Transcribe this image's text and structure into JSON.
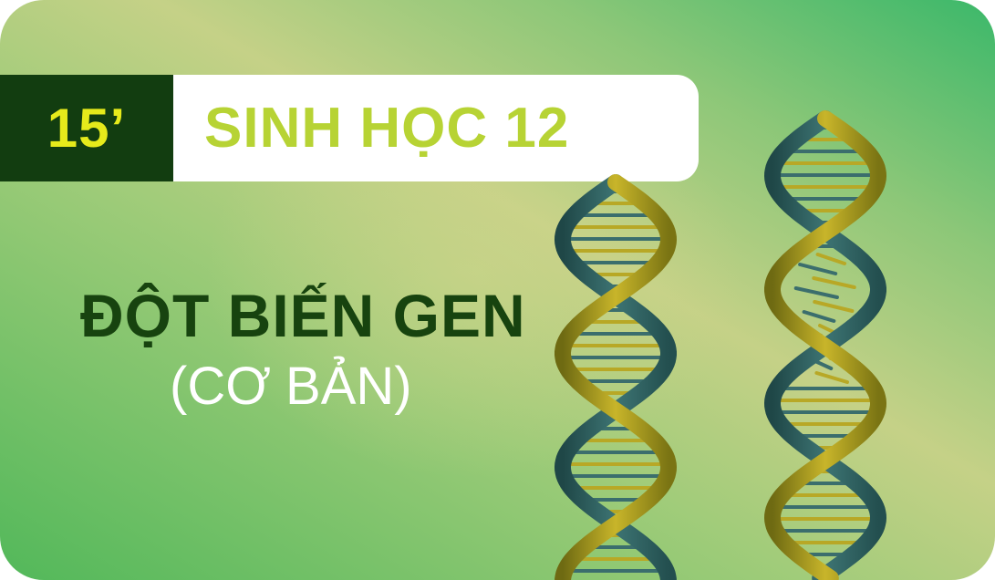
{
  "badge": {
    "label": "15’"
  },
  "title": {
    "text": "SINH HỌC 12"
  },
  "headline": {
    "text": "ĐỘT BIẾN GEN"
  },
  "subline": {
    "text": "(CƠ BẢN)"
  },
  "colors": {
    "badge_bg": "#123d10",
    "badge_text": "#e6ea1b",
    "title_text": "#b7d334",
    "headline_text": "#17430f",
    "subline_text": "#ffffff",
    "strand_dark": "#2f5f5e",
    "strand_gold": "#a89a1a"
  },
  "illustration": {
    "left_helix": "intact-dna-helix",
    "right_helix": "mutated-dna-helix"
  }
}
